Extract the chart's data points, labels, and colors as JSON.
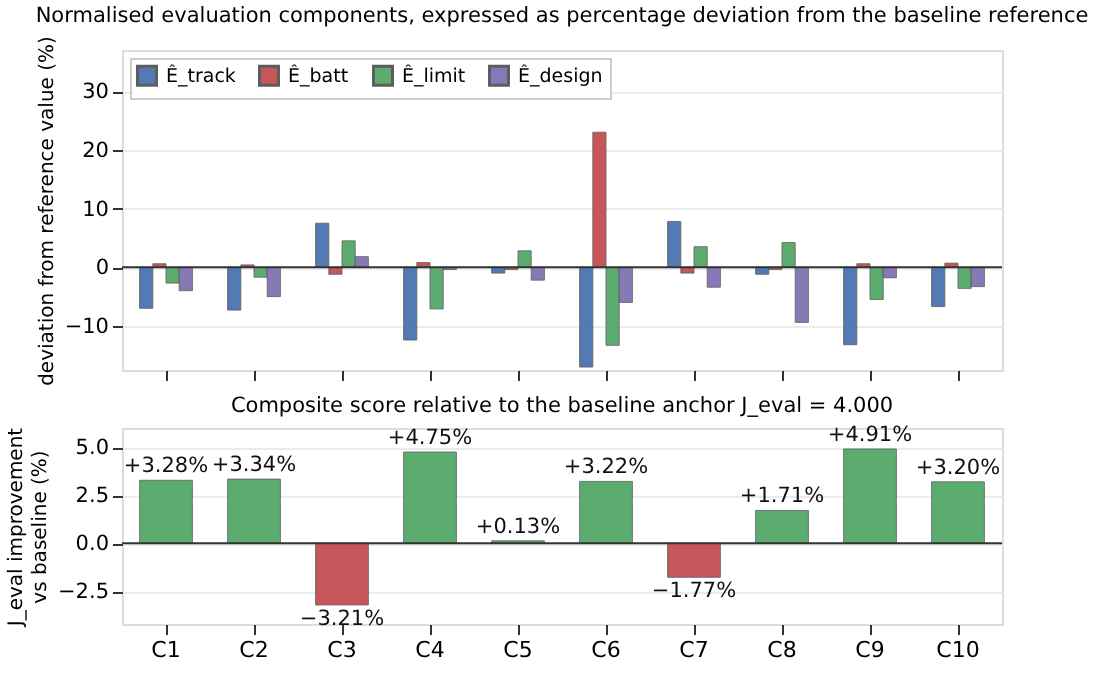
{
  "chart_data": [
    {
      "type": "bar",
      "title": "Normalised evaluation components, expressed as percentage deviation from the baseline reference",
      "ylabel": "deviation from reference value (%)",
      "categories": [
        null,
        null,
        null,
        null,
        null,
        null,
        null,
        null,
        null,
        null
      ],
      "series": [
        {
          "name": "Ê_track",
          "color": "#4c72b0",
          "values": [
            -7,
            -7.3,
            7.5,
            -12.4,
            -1,
            -17,
            7.8,
            -1.2,
            -13.2,
            -6.7
          ]
        },
        {
          "name": "Ê_batt",
          "color": "#c44e52",
          "values": [
            0.6,
            0.4,
            -1.2,
            0.8,
            -0.4,
            23,
            -1,
            -0.4,
            0.6,
            0.7
          ]
        },
        {
          "name": "Ê_limit",
          "color": "#55a868",
          "values": [
            -2.7,
            -1.7,
            4.5,
            -7.1,
            2.8,
            -13.3,
            3.5,
            4.2,
            -5.5,
            -3.6
          ]
        },
        {
          "name": "Ê_design",
          "color": "#8172b2",
          "values": [
            -4,
            -5,
            1.8,
            -0.4,
            -2.2,
            -6,
            -3.4,
            -9.4,
            -1.8,
            -3.3
          ]
        }
      ],
      "ylim": [
        -17.5,
        37
      ],
      "yticks": [
        -10,
        0,
        10,
        20,
        30
      ],
      "grid": "y",
      "legend": "top left",
      "tick_labels": "y",
      "ref_lines": [
        {
          "axis": "y",
          "value": 0
        }
      ]
    },
    {
      "type": "bar",
      "title": "Composite score relative to the baseline anchor J_eval = 4.000",
      "ylabel": "J_eval improvement\nvs baseline (%)",
      "categories": [
        "C1",
        "C2",
        "C3",
        "C4",
        "C5",
        "C6",
        "C7",
        "C8",
        "C9",
        "C10"
      ],
      "values": [
        3.28,
        3.34,
        -3.21,
        4.75,
        0.13,
        3.22,
        -1.77,
        1.71,
        4.91,
        3.2
      ],
      "colors": [
        "#55a868",
        "#55a868",
        "#c44e52",
        "#55a868",
        "#55a868",
        "#55a868",
        "#c44e52",
        "#55a868",
        "#55a868",
        "#55a868"
      ],
      "value_labels": [
        "+3.28%",
        "+3.34%",
        "−3.21%",
        "+4.75%",
        "+0.13%",
        "+3.22%",
        "−1.77%",
        "+1.71%",
        "+4.91%",
        "+3.20%"
      ],
      "ylim": [
        -4.2,
        6
      ],
      "yticks": [
        {
          "value": -2.5,
          "label": "−2.5"
        },
        {
          "value": 0,
          "label": "0.0"
        },
        {
          "value": 2.5,
          "label": "2.5"
        },
        {
          "value": 5,
          "label": "5.0"
        }
      ],
      "grid": "y",
      "ref_lines": [
        {
          "axis": "y",
          "value": 0
        }
      ]
    }
  ]
}
